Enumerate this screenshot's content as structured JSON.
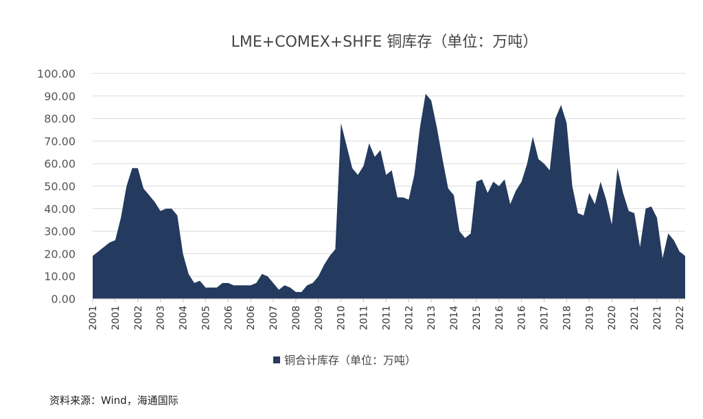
{
  "chart_data": {
    "type": "area",
    "title": "LME+COMEX+SHFE 铜库存（单位：万吨）",
    "source": "资料来源：Wind，海通国际",
    "categories": [
      "2001",
      null,
      null,
      null,
      "2001",
      null,
      null,
      null,
      "2002",
      null,
      null,
      null,
      "2003",
      null,
      null,
      null,
      "2004",
      null,
      null,
      null,
      "2005",
      null,
      null,
      null,
      "2006",
      null,
      null,
      null,
      "2006",
      null,
      null,
      null,
      "2007",
      null,
      null,
      null,
      "2008",
      null,
      null,
      null,
      "2009",
      null,
      null,
      null,
      "2010",
      null,
      null,
      null,
      "2011",
      null,
      null,
      null,
      "2011",
      null,
      null,
      null,
      "2012",
      null,
      null,
      null,
      "2013",
      null,
      null,
      null,
      "2014",
      null,
      null,
      null,
      "2015",
      null,
      null,
      null,
      "2016",
      null,
      null,
      null,
      "2016",
      null,
      null,
      null,
      "2017",
      null,
      null,
      null,
      "2018",
      null,
      null,
      null,
      "2019",
      null,
      null,
      null,
      "2020",
      null,
      null,
      null,
      "2021",
      null,
      null,
      null,
      "2021",
      null,
      null,
      null,
      "2022",
      null
    ],
    "series": [
      {
        "name": "铜合计库存（单位：万吨）",
        "color": "#243a5e",
        "values": [
          19,
          21,
          23,
          25,
          26,
          36,
          50,
          58,
          58,
          49,
          46,
          43,
          39,
          40,
          40,
          37,
          20,
          11,
          7,
          8,
          5,
          5,
          5,
          7,
          7,
          6,
          6,
          6,
          6,
          7,
          11,
          10,
          7,
          4,
          6,
          5,
          3,
          3,
          6,
          7,
          10,
          15,
          19,
          22,
          78,
          68,
          58,
          55,
          59,
          69,
          63,
          66,
          55,
          57,
          45,
          45,
          44,
          55,
          76,
          91,
          88,
          76,
          62,
          49,
          46,
          30,
          27,
          29,
          52,
          53,
          47,
          52,
          50,
          53,
          42,
          48,
          52,
          60,
          72,
          62,
          60,
          57,
          80,
          86,
          78,
          50,
          38,
          37,
          47,
          42,
          52,
          44,
          33,
          58,
          47,
          39,
          38,
          23,
          40,
          41,
          36,
          18,
          29,
          26,
          21,
          19
        ]
      }
    ],
    "ylim": [
      0,
      100
    ],
    "yticks": [
      {
        "value": 0,
        "label": "0.00"
      },
      {
        "value": 10,
        "label": "10.00"
      },
      {
        "value": 20,
        "label": "20.00"
      },
      {
        "value": 30,
        "label": "30.00"
      },
      {
        "value": 40,
        "label": "40.00"
      },
      {
        "value": 50,
        "label": "50.00"
      },
      {
        "value": 60,
        "label": "60.00"
      },
      {
        "value": 70,
        "label": "70.00"
      },
      {
        "value": 80,
        "label": "80.00"
      },
      {
        "value": 90,
        "label": "90.00"
      },
      {
        "value": 100,
        "label": "100.00"
      }
    ],
    "grid": true,
    "legend": "bottom"
  }
}
